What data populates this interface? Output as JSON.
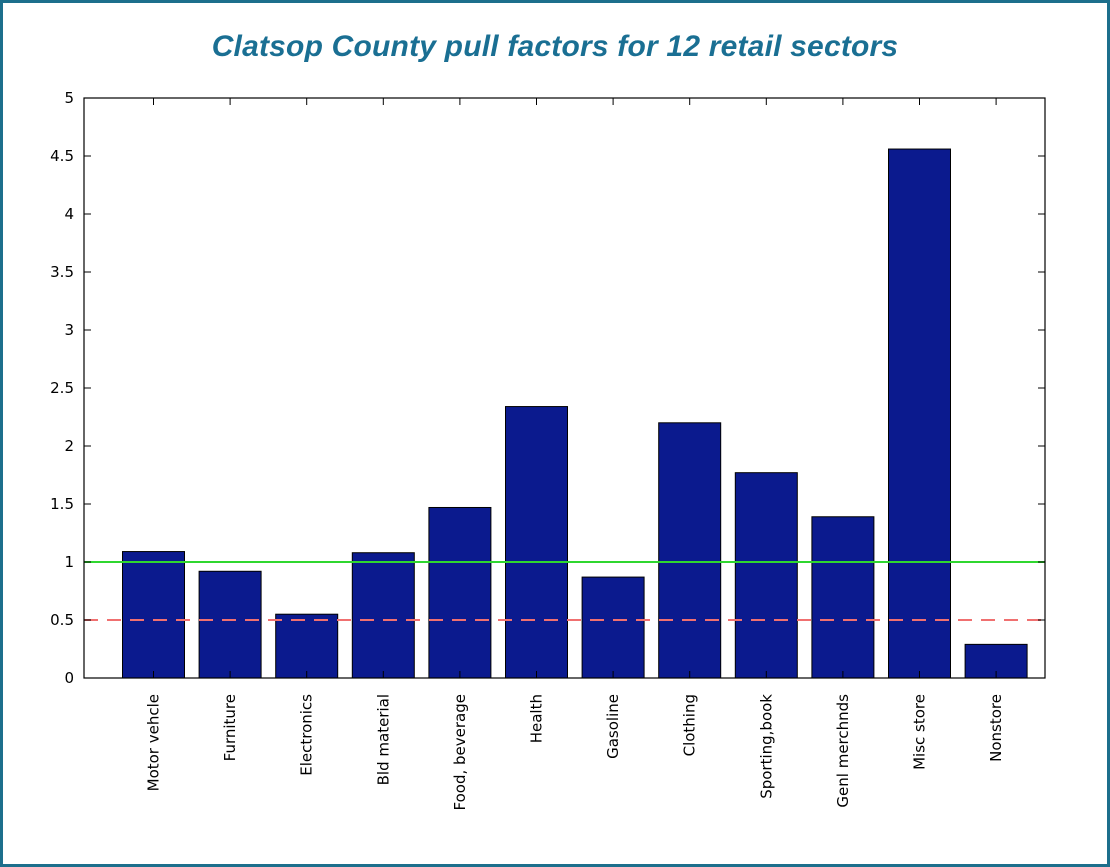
{
  "chart_data": {
    "type": "bar",
    "title": "Clatsop County pull factors for 12 retail sectors",
    "xlabel": "",
    "ylabel": "",
    "ylim": [
      0,
      5
    ],
    "yticks": [
      "0",
      "0.5",
      "1",
      "1.5",
      "2",
      "2.5",
      "3",
      "3.5",
      "4",
      "4.5",
      "5"
    ],
    "categories": [
      "Motor vehcle",
      "Furniture",
      "Electronics",
      "Bld material",
      "Food, beverage",
      "Health",
      "Gasoline",
      "Clothing",
      "Sporting,book",
      "Genl merchnds",
      "Misc store",
      "Nonstore"
    ],
    "values": [
      1.09,
      0.92,
      0.55,
      1.08,
      1.47,
      2.34,
      0.87,
      2.2,
      1.77,
      1.39,
      4.56,
      0.29
    ],
    "reference_lines": [
      {
        "value": 1.0,
        "style": "solid",
        "color": "#2fd72f"
      },
      {
        "value": 0.5,
        "style": "dashed",
        "color": "#f07070"
      }
    ],
    "grid": false,
    "colors": {
      "bar": "#0b1a8e",
      "bar_edge": "#000000",
      "title": "#1a6f93",
      "frame": "#1d6f8c"
    }
  }
}
